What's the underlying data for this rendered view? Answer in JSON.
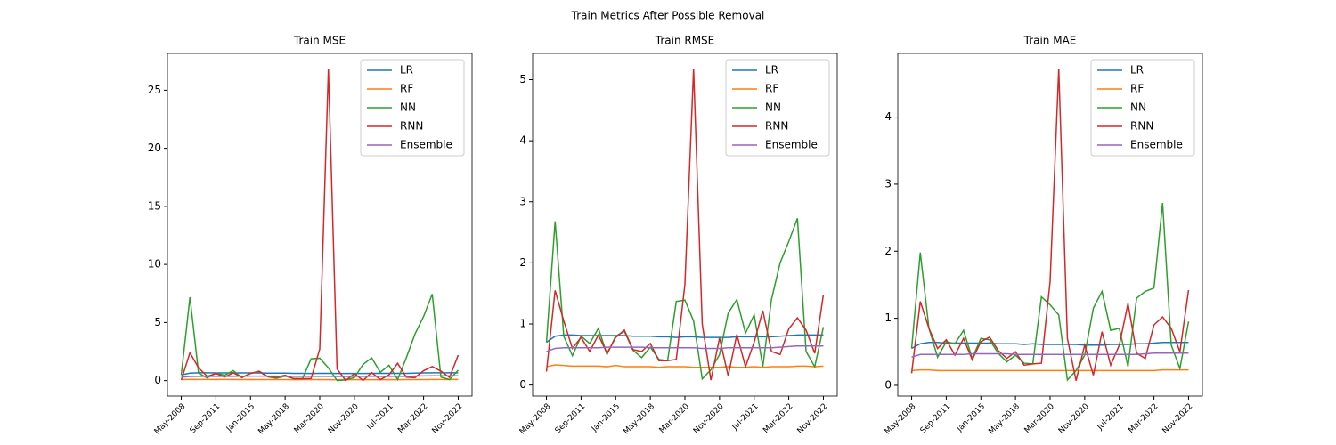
{
  "title": "Train Metrics After Possible Removal",
  "chart_data": [
    {
      "type": "line",
      "title": "Train MSE",
      "categories": [
        "May-2008",
        null,
        null,
        null,
        "Sep-2011",
        null,
        null,
        null,
        "Jan-2015",
        null,
        null,
        null,
        "May-2018",
        null,
        null,
        null,
        "Mar-2020",
        null,
        null,
        null,
        "Nov-2020",
        null,
        null,
        null,
        "Jul-2021",
        null,
        null,
        null,
        "Mar-2022",
        null,
        null,
        null,
        "Nov-2022"
      ],
      "series": [
        {
          "name": "LR",
          "color": "#1f77b4",
          "values": [
            0.49,
            0.64,
            0.67,
            0.67,
            0.66,
            0.66,
            0.66,
            0.66,
            0.66,
            0.66,
            0.64,
            0.64,
            0.64,
            0.62,
            0.62,
            0.61,
            0.62,
            0.62,
            0.61,
            0.61,
            0.61,
            0.61,
            0.62,
            0.62,
            0.62,
            0.62,
            0.62,
            0.64,
            0.66,
            0.67,
            0.67,
            0.67,
            0.67
          ]
        },
        {
          "name": "RF",
          "color": "#ff7f0e",
          "values": [
            0.09,
            0.11,
            0.1,
            0.1,
            0.1,
            0.1,
            0.1,
            0.09,
            0.1,
            0.09,
            0.09,
            0.09,
            0.09,
            0.08,
            0.09,
            0.09,
            0.09,
            0.08,
            0.08,
            0.08,
            0.08,
            0.09,
            0.08,
            0.08,
            0.09,
            0.08,
            0.09,
            0.09,
            0.09,
            0.1,
            0.1,
            0.09,
            0.1
          ]
        },
        {
          "name": "NN",
          "color": "#2ca02c",
          "values": [
            0.49,
            7.18,
            0.64,
            0.23,
            0.64,
            0.46,
            0.86,
            0.25,
            0.64,
            0.77,
            0.32,
            0.2,
            0.38,
            0.18,
            0.16,
            1.88,
            1.93,
            1.1,
            0.01,
            0.06,
            0.25,
            1.39,
            1.96,
            0.72,
            1.32,
            0.09,
            1.96,
            4.0,
            5.52,
            7.45,
            0.3,
            0.09,
            0.9
          ]
        },
        {
          "name": "RNN",
          "color": "#d62728",
          "values": [
            0.05,
            2.4,
            1.1,
            0.36,
            0.61,
            0.3,
            0.67,
            0.27,
            0.61,
            0.81,
            0.34,
            0.3,
            0.46,
            0.16,
            0.16,
            0.18,
            2.72,
            26.83,
            1.0,
            0.01,
            0.59,
            0.02,
            0.69,
            0.09,
            0.49,
            1.49,
            0.3,
            0.25,
            0.85,
            1.21,
            0.81,
            0.27,
            2.19
          ]
        },
        {
          "name": "Ensemble",
          "color": "#9467bd",
          "values": [
            0.3,
            0.36,
            0.37,
            0.37,
            0.37,
            0.37,
            0.37,
            0.38,
            0.38,
            0.38,
            0.38,
            0.38,
            0.37,
            0.37,
            0.37,
            0.37,
            0.37,
            0.37,
            0.36,
            0.36,
            0.36,
            0.37,
            0.37,
            0.37,
            0.37,
            0.37,
            0.37,
            0.38,
            0.4,
            0.41,
            0.41,
            0.41,
            0.41
          ]
        }
      ],
      "ylim": [
        -1.33,
        28.17
      ],
      "yticks": [
        0,
        5,
        10,
        15,
        20,
        25
      ],
      "legend": "upper right"
    },
    {
      "type": "line",
      "title": "Train RMSE",
      "categories": [
        "May-2008",
        null,
        null,
        null,
        "Sep-2011",
        null,
        null,
        null,
        "Jan-2015",
        null,
        null,
        null,
        "May-2018",
        null,
        null,
        null,
        "Mar-2020",
        null,
        null,
        null,
        "Nov-2020",
        null,
        null,
        null,
        "Jul-2021",
        null,
        null,
        null,
        "Mar-2022",
        null,
        null,
        null,
        "Nov-2022"
      ],
      "series": [
        {
          "name": "LR",
          "color": "#1f77b4",
          "values": [
            0.7,
            0.8,
            0.82,
            0.82,
            0.81,
            0.81,
            0.81,
            0.81,
            0.81,
            0.81,
            0.8,
            0.8,
            0.8,
            0.79,
            0.79,
            0.78,
            0.79,
            0.79,
            0.78,
            0.78,
            0.78,
            0.78,
            0.79,
            0.79,
            0.79,
            0.79,
            0.79,
            0.8,
            0.81,
            0.82,
            0.82,
            0.82,
            0.82
          ]
        },
        {
          "name": "RF",
          "color": "#ff7f0e",
          "values": [
            0.3,
            0.33,
            0.32,
            0.31,
            0.31,
            0.31,
            0.31,
            0.3,
            0.32,
            0.3,
            0.3,
            0.3,
            0.3,
            0.29,
            0.3,
            0.3,
            0.3,
            0.29,
            0.29,
            0.29,
            0.29,
            0.3,
            0.29,
            0.29,
            0.3,
            0.29,
            0.3,
            0.3,
            0.3,
            0.31,
            0.31,
            0.3,
            0.31
          ]
        },
        {
          "name": "NN",
          "color": "#2ca02c",
          "values": [
            0.7,
            2.68,
            0.8,
            0.48,
            0.8,
            0.68,
            0.93,
            0.5,
            0.8,
            0.88,
            0.57,
            0.45,
            0.62,
            0.42,
            0.4,
            1.37,
            1.39,
            1.05,
            0.1,
            0.25,
            0.5,
            1.18,
            1.4,
            0.85,
            1.15,
            0.3,
            1.4,
            2.0,
            2.35,
            2.73,
            0.55,
            0.3,
            0.95
          ]
        },
        {
          "name": "RNN",
          "color": "#d62728",
          "values": [
            0.22,
            1.55,
            1.05,
            0.6,
            0.78,
            0.55,
            0.82,
            0.52,
            0.78,
            0.9,
            0.58,
            0.55,
            0.68,
            0.4,
            0.4,
            0.42,
            1.65,
            5.18,
            1.0,
            0.08,
            0.77,
            0.15,
            0.83,
            0.3,
            0.7,
            1.22,
            0.55,
            0.5,
            0.92,
            1.1,
            0.9,
            0.52,
            1.48
          ]
        },
        {
          "name": "Ensemble",
          "color": "#9467bd",
          "values": [
            0.55,
            0.6,
            0.61,
            0.61,
            0.61,
            0.61,
            0.61,
            0.62,
            0.62,
            0.62,
            0.62,
            0.62,
            0.61,
            0.61,
            0.61,
            0.61,
            0.61,
            0.61,
            0.6,
            0.6,
            0.6,
            0.61,
            0.61,
            0.61,
            0.61,
            0.61,
            0.61,
            0.62,
            0.63,
            0.64,
            0.64,
            0.64,
            0.64
          ]
        }
      ],
      "ylim": [
        -0.18,
        5.43
      ],
      "yticks": [
        0,
        1,
        2,
        3,
        4,
        5
      ],
      "legend": "upper right"
    },
    {
      "type": "line",
      "title": "Train MAE",
      "categories": [
        "May-2008",
        null,
        null,
        null,
        "Sep-2011",
        null,
        null,
        null,
        "Jan-2015",
        null,
        null,
        null,
        "May-2018",
        null,
        null,
        null,
        "Mar-2020",
        null,
        null,
        null,
        "Nov-2020",
        null,
        null,
        null,
        "Jul-2021",
        null,
        null,
        null,
        "Mar-2022",
        null,
        null,
        null,
        "Nov-2022"
      ],
      "series": [
        {
          "name": "LR",
          "color": "#1f77b4",
          "values": [
            0.55,
            0.62,
            0.64,
            0.64,
            0.63,
            0.63,
            0.63,
            0.63,
            0.63,
            0.63,
            0.62,
            0.62,
            0.62,
            0.61,
            0.62,
            0.61,
            0.61,
            0.61,
            0.61,
            0.61,
            0.6,
            0.6,
            0.6,
            0.61,
            0.61,
            0.61,
            0.62,
            0.62,
            0.63,
            0.64,
            0.64,
            0.64,
            0.64
          ]
        },
        {
          "name": "RF",
          "color": "#ff7f0e",
          "values": [
            0.22,
            0.23,
            0.23,
            0.22,
            0.22,
            0.22,
            0.22,
            0.22,
            0.22,
            0.22,
            0.22,
            0.22,
            0.22,
            0.22,
            0.22,
            0.22,
            0.22,
            0.22,
            0.22,
            0.22,
            0.22,
            0.22,
            0.22,
            0.22,
            0.22,
            0.22,
            0.22,
            0.22,
            0.22,
            0.23,
            0.23,
            0.23,
            0.23
          ]
        },
        {
          "name": "NN",
          "color": "#2ca02c",
          "values": [
            0.55,
            1.98,
            0.85,
            0.42,
            0.65,
            0.62,
            0.82,
            0.4,
            0.7,
            0.68,
            0.48,
            0.35,
            0.45,
            0.33,
            0.32,
            1.32,
            1.2,
            1.05,
            0.08,
            0.22,
            0.45,
            1.15,
            1.4,
            0.82,
            0.85,
            0.28,
            1.3,
            1.4,
            1.45,
            2.72,
            0.6,
            0.25,
            0.95
          ]
        },
        {
          "name": "RNN",
          "color": "#d62728",
          "values": [
            0.18,
            1.25,
            0.85,
            0.55,
            0.68,
            0.45,
            0.7,
            0.38,
            0.65,
            0.72,
            0.52,
            0.4,
            0.5,
            0.3,
            0.32,
            0.33,
            1.55,
            4.72,
            0.7,
            0.07,
            0.6,
            0.15,
            0.8,
            0.3,
            0.6,
            1.22,
            0.48,
            0.4,
            0.9,
            1.02,
            0.85,
            0.5,
            1.42
          ]
        },
        {
          "name": "Ensemble",
          "color": "#9467bd",
          "values": [
            0.42,
            0.46,
            0.46,
            0.46,
            0.46,
            0.46,
            0.46,
            0.47,
            0.47,
            0.47,
            0.47,
            0.47,
            0.46,
            0.46,
            0.46,
            0.46,
            0.46,
            0.46,
            0.46,
            0.46,
            0.46,
            0.46,
            0.46,
            0.46,
            0.46,
            0.46,
            0.46,
            0.47,
            0.48,
            0.48,
            0.48,
            0.48,
            0.48
          ]
        }
      ],
      "ylim": [
        -0.16,
        4.95
      ],
      "yticks": [
        0,
        1,
        2,
        3,
        4
      ],
      "legend": "upper right"
    }
  ]
}
